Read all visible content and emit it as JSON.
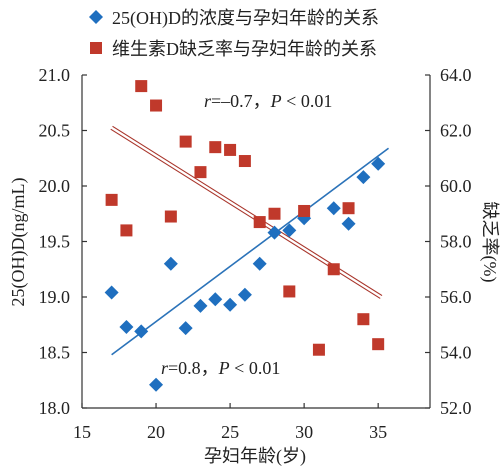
{
  "chart_data": {
    "type": "scatter",
    "xlabel": "孕妇年龄(岁)",
    "ylabel": "25(OH)D(ng/mL)",
    "ylabel_right": "缺乏率(%)",
    "xlim": [
      15,
      38.5
    ],
    "ylim": [
      18.0,
      21.0
    ],
    "ylim_right": [
      52.0,
      64.0
    ],
    "x_ticks": [
      "15",
      "20",
      "25",
      "30",
      "35"
    ],
    "y_ticks": [
      "18.0",
      "18.5",
      "19.0",
      "19.5",
      "20.0",
      "20.5",
      "21.0"
    ],
    "y_ticks_right": [
      "52.0",
      "54.0",
      "56.0",
      "58.0",
      "60.0",
      "62.0",
      "64.0"
    ],
    "grid": false,
    "legend": "top",
    "series": [
      {
        "name": "25(OH)D的浓度与孕妇年龄的关系",
        "y_axis": "left",
        "marker": "diamond",
        "color": "#1f6fbf",
        "line_color": "#2b73b9",
        "points": [
          [
            17,
            19.04
          ],
          [
            18,
            18.73
          ],
          [
            19,
            18.69
          ],
          [
            20,
            18.21
          ],
          [
            21,
            19.3
          ],
          [
            22,
            18.72
          ],
          [
            23,
            18.92
          ],
          [
            24,
            18.98
          ],
          [
            25,
            18.93
          ],
          [
            26,
            19.02
          ],
          [
            27,
            19.3
          ],
          [
            28,
            19.58
          ],
          [
            29,
            19.6
          ],
          [
            30,
            19.71
          ],
          [
            32,
            19.8
          ],
          [
            33,
            19.66
          ],
          [
            34,
            20.08
          ],
          [
            35,
            20.2
          ]
        ],
        "trendline": [
          [
            17,
            18.48
          ],
          [
            35.7,
            20.34
          ]
        ]
      },
      {
        "name": "维生素D缺乏率与孕妇年龄的关系",
        "y_axis": "right",
        "marker": "square",
        "color": "#c0392b",
        "line_color": "#a9352b",
        "points": [
          [
            17,
            59.5
          ],
          [
            18,
            58.4
          ],
          [
            19,
            63.6
          ],
          [
            20,
            62.9
          ],
          [
            21,
            58.9
          ],
          [
            22,
            61.6
          ],
          [
            23,
            60.5
          ],
          [
            24,
            61.4
          ],
          [
            25,
            61.3
          ],
          [
            26,
            60.9
          ],
          [
            27,
            58.7
          ],
          [
            28,
            59.0
          ],
          [
            29,
            56.2
          ],
          [
            30,
            59.1
          ],
          [
            31,
            54.1
          ],
          [
            32,
            57.0
          ],
          [
            33,
            59.2
          ],
          [
            34,
            55.2
          ],
          [
            35,
            54.3
          ]
        ],
        "trendline": [
          [
            17,
            62.1
          ],
          [
            35.2,
            56.0
          ]
        ]
      }
    ],
    "annotations": [
      "r=–0.7，P < 0.01",
      "r=0.8，P < 0.01"
    ]
  }
}
